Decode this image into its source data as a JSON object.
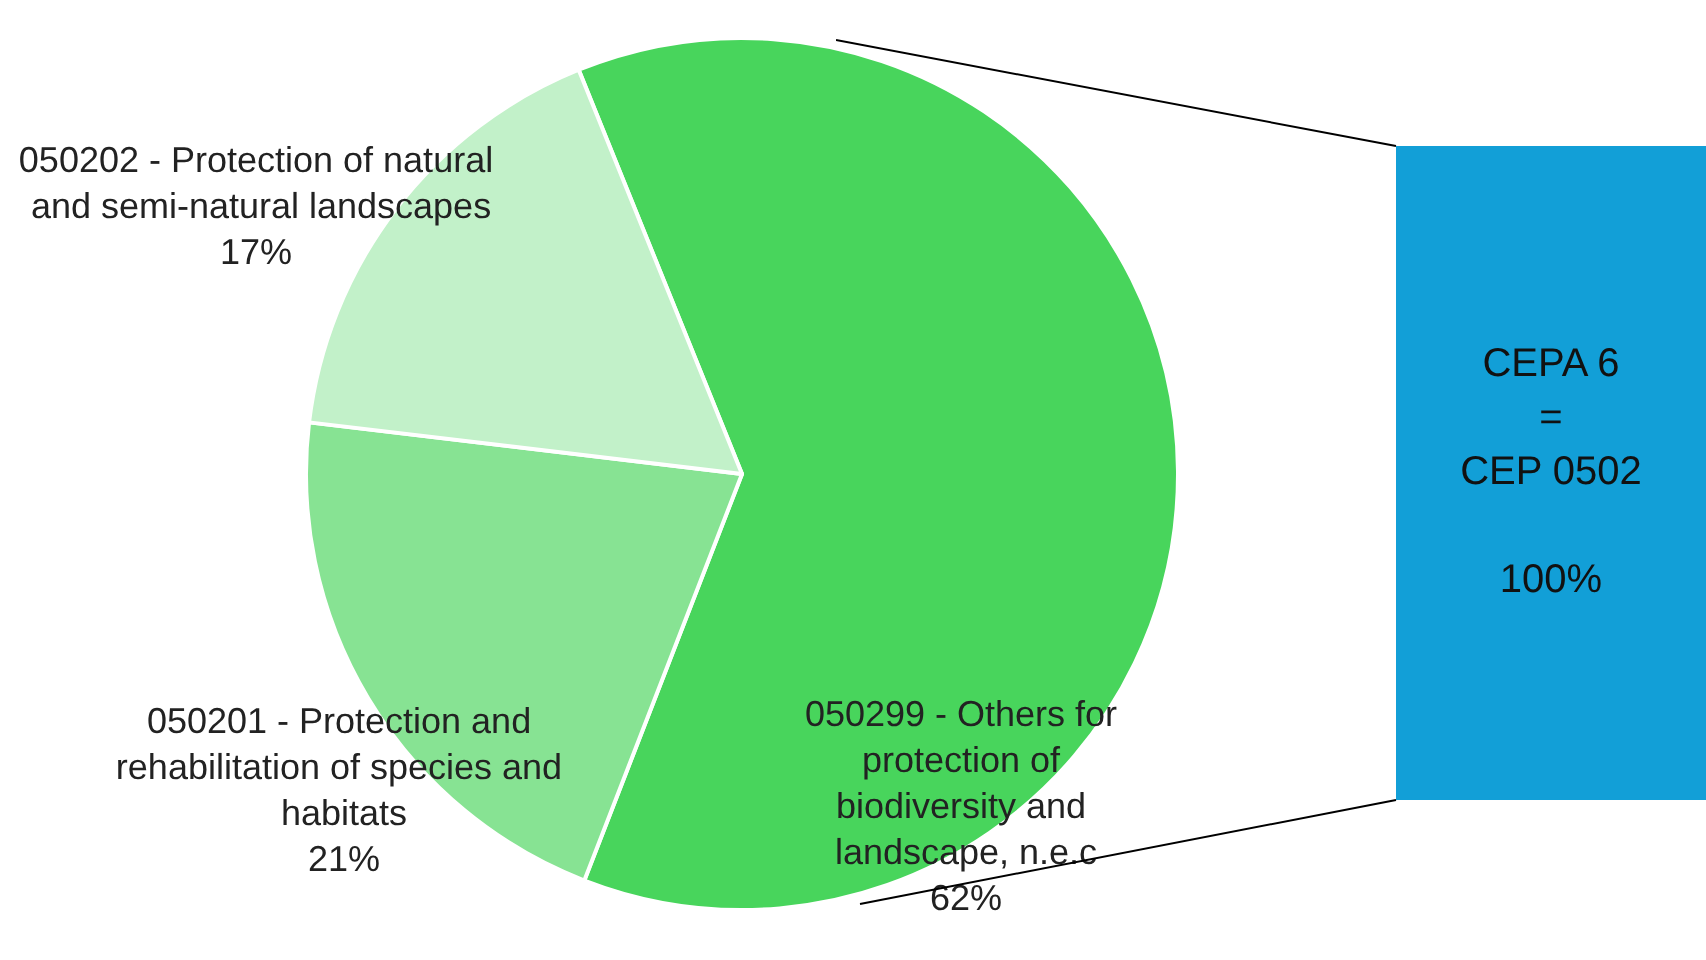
{
  "chart_data": {
    "type": "pie",
    "categories": [
      "050299 - Others for protection of biodiversity and landscape, n.e.c",
      "050201 - Protection and rehabilitation of species and habitats",
      "050202 - Protection of natural and semi-natural landscapes"
    ],
    "values": [
      62,
      21,
      17
    ],
    "colors": [
      "#48d55c",
      "#87e393",
      "#c2f1c9"
    ],
    "value_labels": [
      "62%",
      "21%",
      "17%"
    ],
    "legend": false,
    "annotations": [
      "CEPA 6",
      "=",
      "CEP 0502",
      "100%"
    ]
  }
}
